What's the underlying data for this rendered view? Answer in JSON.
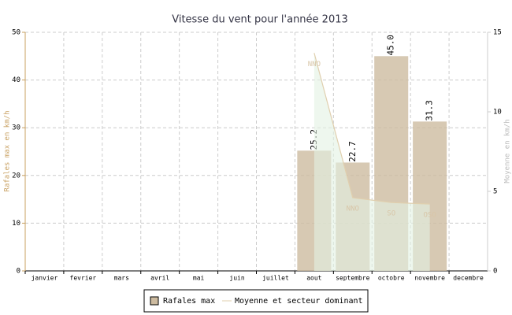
{
  "chart_data": {
    "type": "bar",
    "title": "Vitesse du vent pour l'année 2013",
    "categories": [
      "janvier",
      "fevrier",
      "mars",
      "avril",
      "mai",
      "juin",
      "juillet",
      "aout",
      "septembre",
      "octobre",
      "novembre",
      "decembre"
    ],
    "y_label": "Rafales max en km/h",
    "y2_label": "Moyenne en km/h",
    "ylim": [
      0,
      50
    ],
    "yticks": [
      0,
      10,
      20,
      30,
      40,
      50
    ],
    "y2lim": [
      0,
      15
    ],
    "y2ticks": [
      0,
      5,
      10,
      15
    ],
    "grid": true,
    "legend": "bottom",
    "series": [
      {
        "name": "Rafales max",
        "type": "bar",
        "color": "#cdbba0",
        "values": [
          null,
          null,
          null,
          null,
          null,
          null,
          null,
          25.2,
          22.7,
          45.0,
          31.3,
          null
        ],
        "value_labels": [
          null,
          null,
          null,
          null,
          null,
          null,
          null,
          "25.2",
          "22.7",
          "45.0",
          "31.3",
          null
        ]
      },
      {
        "name": "Moyenne et secteur dominant",
        "type": "line",
        "axis": "y2",
        "color": "#e0cfae",
        "fill": "#e3f2e3",
        "values": [
          null,
          null,
          null,
          null,
          null,
          null,
          null,
          13.7,
          4.6,
          4.3,
          4.2,
          null
        ],
        "point_labels": [
          null,
          null,
          null,
          null,
          null,
          null,
          null,
          "NNO",
          "NNO",
          "SO",
          "OSO",
          null
        ]
      }
    ]
  }
}
